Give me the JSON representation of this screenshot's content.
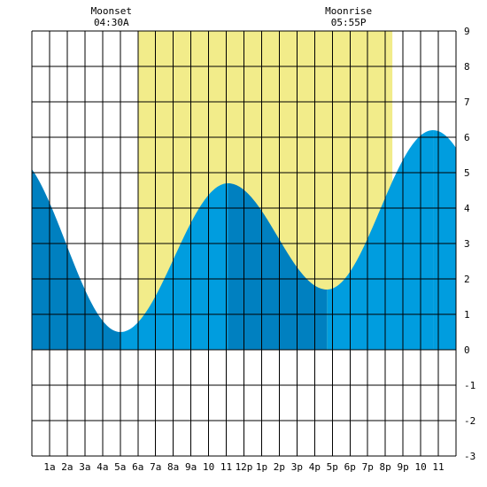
{
  "chart_data": {
    "type": "area",
    "title": "",
    "xlabel": "",
    "ylabel": "",
    "xlim": [
      0,
      24
    ],
    "ylim": [
      -3,
      9
    ],
    "x_ticks": [
      {
        "hour": 1,
        "label": "1a"
      },
      {
        "hour": 2,
        "label": "2a"
      },
      {
        "hour": 3,
        "label": "3a"
      },
      {
        "hour": 4,
        "label": "4a"
      },
      {
        "hour": 5,
        "label": "5a"
      },
      {
        "hour": 6,
        "label": "6a"
      },
      {
        "hour": 7,
        "label": "7a"
      },
      {
        "hour": 8,
        "label": "8a"
      },
      {
        "hour": 9,
        "label": "9a"
      },
      {
        "hour": 10,
        "label": "10"
      },
      {
        "hour": 11,
        "label": "11"
      },
      {
        "hour": 12,
        "label": "12p"
      },
      {
        "hour": 13,
        "label": "1p"
      },
      {
        "hour": 14,
        "label": "2p"
      },
      {
        "hour": 15,
        "label": "3p"
      },
      {
        "hour": 16,
        "label": "4p"
      },
      {
        "hour": 17,
        "label": "5p"
      },
      {
        "hour": 18,
        "label": "6p"
      },
      {
        "hour": 19,
        "label": "7p"
      },
      {
        "hour": 20,
        "label": "8p"
      },
      {
        "hour": 21,
        "label": "9p"
      },
      {
        "hour": 22,
        "label": "10"
      },
      {
        "hour": 23,
        "label": "11"
      }
    ],
    "y_ticks": [
      -3,
      -2,
      -1,
      0,
      1,
      2,
      3,
      4,
      5,
      6,
      7,
      8,
      9
    ],
    "grid": true,
    "daylight": {
      "start_hour": 6.0,
      "end_hour": 20.4,
      "color": "#f2ec8a"
    },
    "colors": {
      "tide_light": "#009ddf",
      "tide_dark": "#0080c0",
      "grid": "#000000"
    },
    "tide_extremes": [
      {
        "hour": 5.0,
        "height": 0.5,
        "type": "low"
      },
      {
        "hour": 11.1,
        "height": 4.7,
        "type": "high"
      },
      {
        "hour": 16.7,
        "height": 1.7,
        "type": "low"
      },
      {
        "hour": 22.7,
        "height": 6.2,
        "type": "high"
      }
    ],
    "start_height": 5.1,
    "start_rising": false,
    "annotations": [
      {
        "name": "moonset",
        "label": "Moonset",
        "time": "04:30A",
        "hour": 4.5
      },
      {
        "name": "moonrise",
        "label": "Moonrise",
        "time": "05:55P",
        "hour": 17.92
      }
    ]
  }
}
